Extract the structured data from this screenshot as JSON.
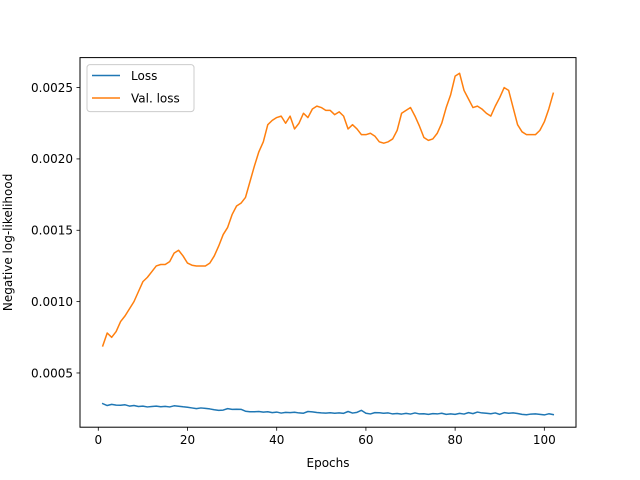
{
  "chart_data": {
    "type": "line",
    "xlabel": "Epochs",
    "ylabel": "Negative log-likelihood",
    "xlim": [
      -4.1,
      107.1
    ],
    "ylim": [
      0.00012,
      0.00271
    ],
    "xticks": [
      0,
      20,
      40,
      60,
      80,
      100
    ],
    "yticks": [
      0.0005,
      0.001,
      0.0015,
      0.002,
      0.0025
    ],
    "ytick_labels": [
      "0.0005",
      "0.0010",
      "0.0015",
      "0.0020",
      "0.0025"
    ],
    "grid": false,
    "legend_position": "top-left",
    "x": [
      1,
      2,
      3,
      4,
      5,
      6,
      7,
      8,
      9,
      10,
      11,
      12,
      13,
      14,
      15,
      16,
      17,
      18,
      19,
      20,
      21,
      22,
      23,
      24,
      25,
      26,
      27,
      28,
      29,
      30,
      31,
      32,
      33,
      34,
      35,
      36,
      37,
      38,
      39,
      40,
      41,
      42,
      43,
      44,
      45,
      46,
      47,
      48,
      49,
      50,
      51,
      52,
      53,
      54,
      55,
      56,
      57,
      58,
      59,
      60,
      61,
      62,
      63,
      64,
      65,
      66,
      67,
      68,
      69,
      70,
      71,
      72,
      73,
      74,
      75,
      76,
      77,
      78,
      79,
      80,
      81,
      82,
      83,
      84,
      85,
      86,
      87,
      88,
      89,
      90,
      91,
      92,
      93,
      94,
      95,
      96,
      97,
      98,
      99,
      100,
      101,
      102
    ],
    "series": [
      {
        "name": "Loss",
        "color": "#1f77b4",
        "values": [
          0.000285,
          0.000272,
          0.00028,
          0.000275,
          0.000274,
          0.000277,
          0.000268,
          0.000272,
          0.000265,
          0.000268,
          0.000262,
          0.000265,
          0.000268,
          0.000263,
          0.000266,
          0.000262,
          0.00027,
          0.000267,
          0.000263,
          0.00026,
          0.000255,
          0.00025,
          0.000255,
          0.000252,
          0.000248,
          0.000242,
          0.000238,
          0.00024,
          0.00025,
          0.000245,
          0.000246,
          0.000245,
          0.000232,
          0.000228,
          0.000228,
          0.00023,
          0.000226,
          0.000228,
          0.000222,
          0.000226,
          0.000219,
          0.000224,
          0.000222,
          0.000225,
          0.00022,
          0.000218,
          0.00023,
          0.000227,
          0.000223,
          0.00022,
          0.000219,
          0.000221,
          0.000218,
          0.00022,
          0.000217,
          0.00023,
          0.000219,
          0.000224,
          0.000238,
          0.000218,
          0.000213,
          0.000222,
          0.000221,
          0.000218,
          0.00022,
          0.000213,
          0.000216,
          0.000212,
          0.000217,
          0.000212,
          0.00022,
          0.000213,
          0.000214,
          0.00021,
          0.000215,
          0.000213,
          0.000218,
          0.00021,
          0.000213,
          0.00021,
          0.000217,
          0.000212,
          0.000222,
          0.000215,
          0.000226,
          0.00022,
          0.000218,
          0.000214,
          0.00022,
          0.00021,
          0.000222,
          0.000218,
          0.00022,
          0.000216,
          0.00021,
          0.000207,
          0.000212,
          0.000213,
          0.00021,
          0.000206,
          0.000214,
          0.000208
        ]
      },
      {
        "name": "Val. loss",
        "color": "#ff7f0e",
        "values": [
          0.00069,
          0.00078,
          0.00075,
          0.00079,
          0.00086,
          0.0009,
          0.00095,
          0.001,
          0.00107,
          0.00114,
          0.00117,
          0.00121,
          0.00125,
          0.00126,
          0.00126,
          0.00128,
          0.00134,
          0.00136,
          0.00132,
          0.00127,
          0.001255,
          0.00125,
          0.00125,
          0.00125,
          0.00127,
          0.00132,
          0.00139,
          0.00147,
          0.00152,
          0.00161,
          0.00167,
          0.00169,
          0.00173,
          0.00184,
          0.00195,
          0.00205,
          0.00212,
          0.00224,
          0.00227,
          0.00229,
          0.0023,
          0.00225,
          0.0023,
          0.00221,
          0.00225,
          0.00232,
          0.00229,
          0.00235,
          0.00237,
          0.00236,
          0.00234,
          0.00234,
          0.00231,
          0.00233,
          0.0023,
          0.00221,
          0.00224,
          0.00221,
          0.00217,
          0.00217,
          0.00218,
          0.00216,
          0.00212,
          0.00211,
          0.00212,
          0.00214,
          0.0022,
          0.00232,
          0.00234,
          0.00236,
          0.0023,
          0.00223,
          0.00215,
          0.00213,
          0.00214,
          0.00218,
          0.00225,
          0.00236,
          0.00245,
          0.00258,
          0.0026,
          0.00248,
          0.00242,
          0.00236,
          0.00237,
          0.00235,
          0.00232,
          0.0023,
          0.00237,
          0.00243,
          0.0025,
          0.00248,
          0.00236,
          0.00224,
          0.00219,
          0.00217,
          0.00217,
          0.00217,
          0.0022,
          0.00226,
          0.00235,
          0.00246
        ]
      }
    ]
  }
}
